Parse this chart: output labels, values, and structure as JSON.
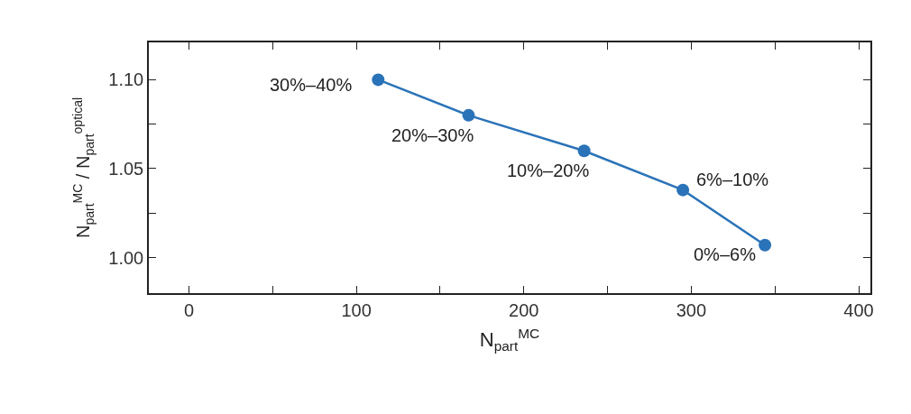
{
  "chart_data": {
    "type": "line",
    "xlabel": "N$_{part}$$^{MC}$",
    "ylabel": "N$_{part}$$^{MC}$ / N$_{part}$$^{optical}$",
    "x": [
      113,
      167,
      236,
      295,
      344
    ],
    "series": [
      {
        "color": "#2a73b8",
        "values": [
          1.1,
          1.08,
          1.06,
          1.038,
          1.007
        ]
      }
    ],
    "xlim": [
      -24,
      407
    ],
    "ylim": [
      0.98,
      1.121
    ],
    "xticks": [
      0,
      {
        "value": 50,
        "label": null
      },
      100,
      {
        "value": 150,
        "label": null
      },
      200,
      {
        "value": 250,
        "label": null
      },
      300,
      {
        "value": 350,
        "label": null
      },
      400
    ],
    "yticks": [
      {
        "value": 1.0,
        "label": "1.00"
      },
      {
        "value": 1.025,
        "label": null
      },
      {
        "value": 1.05,
        "label": "1.05"
      },
      {
        "value": 1.075,
        "label": null
      },
      {
        "value": 1.1,
        "label": "1.10"
      }
    ],
    "annotations": [
      {
        "text": "30%–40%",
        "x": 113,
        "y": 1.1
      },
      {
        "text": "20%–30%",
        "x": 167,
        "y": 1.08
      },
      {
        "text": "10%–20%",
        "x": 236,
        "y": 1.06
      },
      {
        "text": "6%–10%",
        "x": 295,
        "y": 1.038
      },
      {
        "text": "0%–6%",
        "x": 344,
        "y": 1.007
      }
    ],
    "legend": false,
    "marker": "circle",
    "line_style": "solid"
  }
}
